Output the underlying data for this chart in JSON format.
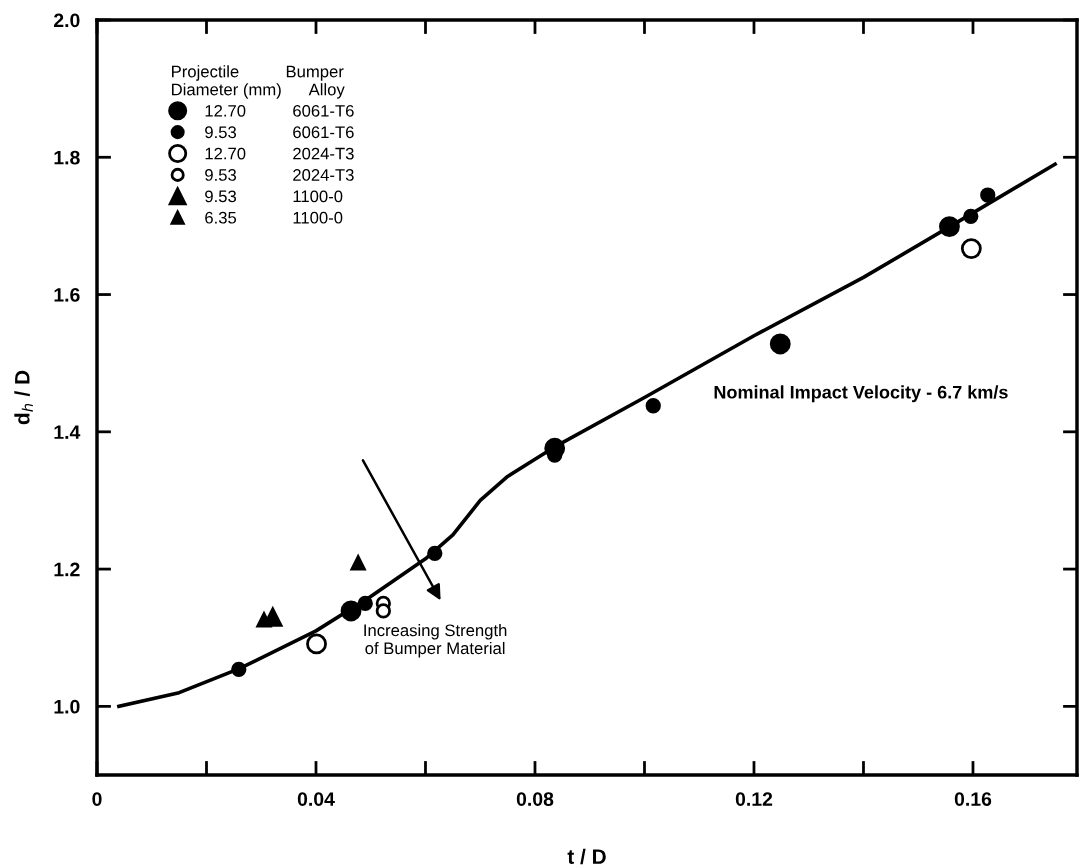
{
  "chart_data": {
    "type": "scatter",
    "xlabel": "t / D",
    "ylabel": "d$_{h}$ / D",
    "xlim": [
      0,
      0.179
    ],
    "ylim": [
      0.9,
      2.0
    ],
    "xticks": [
      0,
      {
        "value": 0.02,
        "label": null
      },
      0.04,
      {
        "value": 0.06,
        "label": null
      },
      0.08,
      {
        "value": 0.1,
        "label": null
      },
      0.12,
      {
        "value": 0.14,
        "label": null
      },
      0.16
    ],
    "yticks": [
      {
        "value": 1.0,
        "label": "1.0"
      },
      1.2,
      1.4,
      1.6,
      1.8,
      {
        "value": 2.0,
        "label": "2.0"
      }
    ],
    "legend": "top left",
    "legend_title": "Projectile          Bumper\nDiameter (mm)      Alloy",
    "grid": false,
    "series": [
      {
        "name": "12.70          6061-T6",
        "color": "#000000",
        "marker": "circle",
        "x": [
          0.0464,
          0.0836,
          0.1248,
          0.1557
        ],
        "values": [
          1.139,
          1.376,
          1.528,
          1.699
        ]
      },
      {
        "name": "9.53            6061-T6",
        "color": "#000000",
        "marker": "circle",
        "x": [
          0.0259,
          0.049,
          0.0617,
          0.0836,
          0.1016,
          0.1596,
          0.1627
        ],
        "values": [
          1.054,
          1.15,
          1.223,
          1.366,
          1.438,
          1.714,
          1.745
        ]
      },
      {
        "name": "12.70          2024-T3",
        "color": "#000000",
        "marker": "circle",
        "x": [
          0.0401,
          0.1597
        ],
        "values": [
          1.091,
          1.667
        ]
      },
      {
        "name": "9.53            2024-T3",
        "color": "#000000",
        "marker": "circle",
        "x": [
          0.0523,
          0.0523
        ],
        "values": [
          1.15,
          1.139
        ]
      },
      {
        "name": "9.53            1100-0",
        "color": "#000000",
        "marker": "triangle",
        "x": [
          0.0321
        ],
        "values": [
          1.13
        ]
      },
      {
        "name": "6.35            1100-0",
        "color": "#000000",
        "marker": "triangle",
        "x": [
          0.0305,
          0.0477
        ],
        "values": [
          1.126,
          1.209
        ]
      },
      {
        "type": "line",
        "color": "#000000",
        "marker": "none",
        "x": [
          0.004,
          0.015,
          0.026,
          0.04,
          0.05,
          0.06,
          0.065,
          0.07,
          0.075,
          0.08,
          0.0836,
          0.1,
          0.12,
          0.14,
          0.156,
          0.175
        ],
        "values": [
          1.0,
          1.02,
          1.055,
          1.11,
          1.16,
          1.215,
          1.25,
          1.3,
          1.335,
          1.36,
          1.378,
          1.45,
          1.54,
          1.625,
          1.7,
          1.79
        ]
      }
    ],
    "annotations": [
      "Nominal Impact Velocity - 6.7 km/s",
      "Increasing Strength\nof Bumper Material"
    ]
  }
}
